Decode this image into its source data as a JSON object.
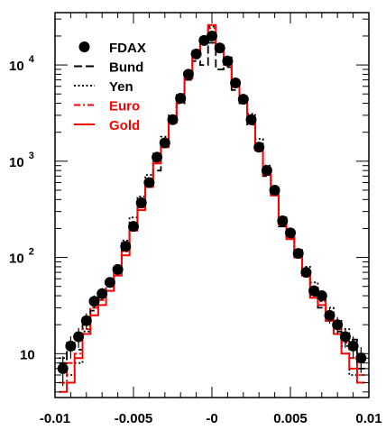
{
  "chart_data": {
    "type": "line",
    "title": "",
    "xlabel": "",
    "ylabel": "",
    "xlim": [
      -0.01,
      0.01
    ],
    "ylim": [
      3.5,
      35000
    ],
    "log_y": true,
    "grid": false,
    "legend_placement": "top-left",
    "x_ticks": [
      {
        "value": -0.01,
        "label": "-0.01"
      },
      {
        "value": -0.005,
        "label": "-0.005"
      },
      {
        "value": 0,
        "label": "-0"
      },
      {
        "value": 0.005,
        "label": "0.005"
      },
      {
        "value": 0.01,
        "label": "0.01"
      }
    ],
    "y_ticks": [
      {
        "value": 10,
        "base": "10",
        "exp": ""
      },
      {
        "value": 100,
        "base": "10",
        "exp": "2"
      },
      {
        "value": 1000,
        "base": "10",
        "exp": "3"
      },
      {
        "value": 10000,
        "base": "10",
        "exp": "4"
      }
    ],
    "bin_width": 0.0005,
    "series": [
      {
        "name": "FDAX",
        "style": "markers",
        "color": "#000000",
        "x": [
          -0.0095,
          -0.009,
          -0.0085,
          -0.008,
          -0.0075,
          -0.007,
          -0.0065,
          -0.006,
          -0.0055,
          -0.005,
          -0.0045,
          -0.004,
          -0.0035,
          -0.003,
          -0.0025,
          -0.002,
          -0.0015,
          -0.001,
          -0.0005,
          0,
          0.0005,
          0.001,
          0.0015,
          0.002,
          0.0025,
          0.003,
          0.0035,
          0.004,
          0.0045,
          0.005,
          0.0055,
          0.006,
          0.0065,
          0.007,
          0.0075,
          0.008,
          0.0085,
          0.009,
          0.0095
        ],
        "values": [
          7,
          12,
          15,
          22,
          35,
          42,
          55,
          75,
          130,
          210,
          370,
          600,
          1100,
          1550,
          2700,
          4500,
          8000,
          13000,
          18000,
          20000,
          15000,
          11000,
          6500,
          4400,
          2700,
          1400,
          800,
          500,
          240,
          180,
          110,
          70,
          45,
          40,
          25,
          20,
          15,
          12,
          9
        ]
      },
      {
        "name": "Bund",
        "style": "dashed",
        "color": "#000000",
        "x": [
          -0.0095,
          -0.009,
          -0.0085,
          -0.008,
          -0.0075,
          -0.007,
          -0.0065,
          -0.006,
          -0.0055,
          -0.005,
          -0.0045,
          -0.004,
          -0.0035,
          -0.003,
          -0.0025,
          -0.002,
          -0.0015,
          -0.001,
          -0.0005,
          0,
          0.0005,
          0.001,
          0.0015,
          0.002,
          0.0025,
          0.003,
          0.0035,
          0.004,
          0.0045,
          0.005,
          0.0055,
          0.006,
          0.0065,
          0.007,
          0.0075,
          0.008,
          0.0085,
          0.009,
          0.0095
        ],
        "values": [
          8,
          13,
          11,
          20,
          28,
          40,
          45,
          70,
          120,
          200,
          330,
          560,
          800,
          1450,
          2500,
          4000,
          7000,
          11000,
          10000,
          17000,
          9000,
          9500,
          5500,
          4000,
          2400,
          1300,
          700,
          450,
          210,
          160,
          100,
          65,
          40,
          30,
          22,
          17,
          12,
          14,
          7
        ]
      },
      {
        "name": "Yen",
        "style": "dotted",
        "color": "#000000",
        "x": [
          -0.0095,
          -0.009,
          -0.0085,
          -0.008,
          -0.0075,
          -0.007,
          -0.0065,
          -0.006,
          -0.0055,
          -0.005,
          -0.0045,
          -0.004,
          -0.0035,
          -0.003,
          -0.0025,
          -0.002,
          -0.0015,
          -0.001,
          -0.0005,
          0,
          0.0005,
          0.001,
          0.0015,
          0.002,
          0.0025,
          0.003,
          0.0035,
          0.004,
          0.0045,
          0.005,
          0.0055,
          0.006,
          0.0065,
          0.007,
          0.0075,
          0.008,
          0.0085,
          0.009,
          0.0095
        ],
        "values": [
          9,
          6,
          8,
          17,
          30,
          38,
          50,
          80,
          150,
          260,
          430,
          720,
          1200,
          1800,
          3000,
          5000,
          8500,
          14000,
          19000,
          25000,
          16000,
          12000,
          7000,
          4700,
          3100,
          1700,
          900,
          520,
          260,
          190,
          120,
          80,
          55,
          42,
          30,
          22,
          18,
          6,
          10
        ]
      },
      {
        "name": "Euro",
        "style": "dashdot",
        "color": "#ff0000",
        "x": [
          -0.0095,
          -0.009,
          -0.0085,
          -0.008,
          -0.0075,
          -0.007,
          -0.0065,
          -0.006,
          -0.0055,
          -0.005,
          -0.0045,
          -0.004,
          -0.0035,
          -0.003,
          -0.0025,
          -0.002,
          -0.0015,
          -0.001,
          -0.0005,
          0,
          0.0005,
          0.001,
          0.0015,
          0.002,
          0.0025,
          0.003,
          0.0035,
          0.004,
          0.0045,
          0.005,
          0.0055,
          0.006,
          0.0065,
          0.007,
          0.0075,
          0.008,
          0.0085,
          0.009,
          0.0095
        ],
        "values": [
          5,
          8,
          10,
          18,
          30,
          36,
          50,
          70,
          115,
          200,
          330,
          580,
          1000,
          1450,
          2600,
          4300,
          7500,
          12000,
          17000,
          24000,
          14000,
          10000,
          6000,
          4200,
          2600,
          1350,
          760,
          460,
          230,
          165,
          105,
          70,
          42,
          35,
          25,
          18,
          13,
          9,
          6
        ]
      },
      {
        "name": "Gold",
        "style": "solid",
        "color": "#ff0000",
        "x": [
          -0.0095,
          -0.009,
          -0.0085,
          -0.008,
          -0.0075,
          -0.007,
          -0.0065,
          -0.006,
          -0.0055,
          -0.005,
          -0.0045,
          -0.004,
          -0.0035,
          -0.003,
          -0.0025,
          -0.002,
          -0.0015,
          -0.001,
          -0.0005,
          0,
          0.0005,
          0.001,
          0.0015,
          0.002,
          0.0025,
          0.003,
          0.0035,
          0.004,
          0.0045,
          0.005,
          0.0055,
          0.006,
          0.0065,
          0.007,
          0.0075,
          0.008,
          0.0085,
          0.009,
          0.0095
        ],
        "values": [
          4,
          5,
          9,
          16,
          25,
          32,
          45,
          65,
          105,
          190,
          310,
          540,
          950,
          1400,
          2500,
          4200,
          7200,
          12500,
          18000,
          26000,
          15000,
          10500,
          6200,
          4200,
          2500,
          1300,
          720,
          440,
          220,
          155,
          100,
          65,
          38,
          32,
          22,
          16,
          10,
          7,
          5
        ]
      }
    ]
  }
}
